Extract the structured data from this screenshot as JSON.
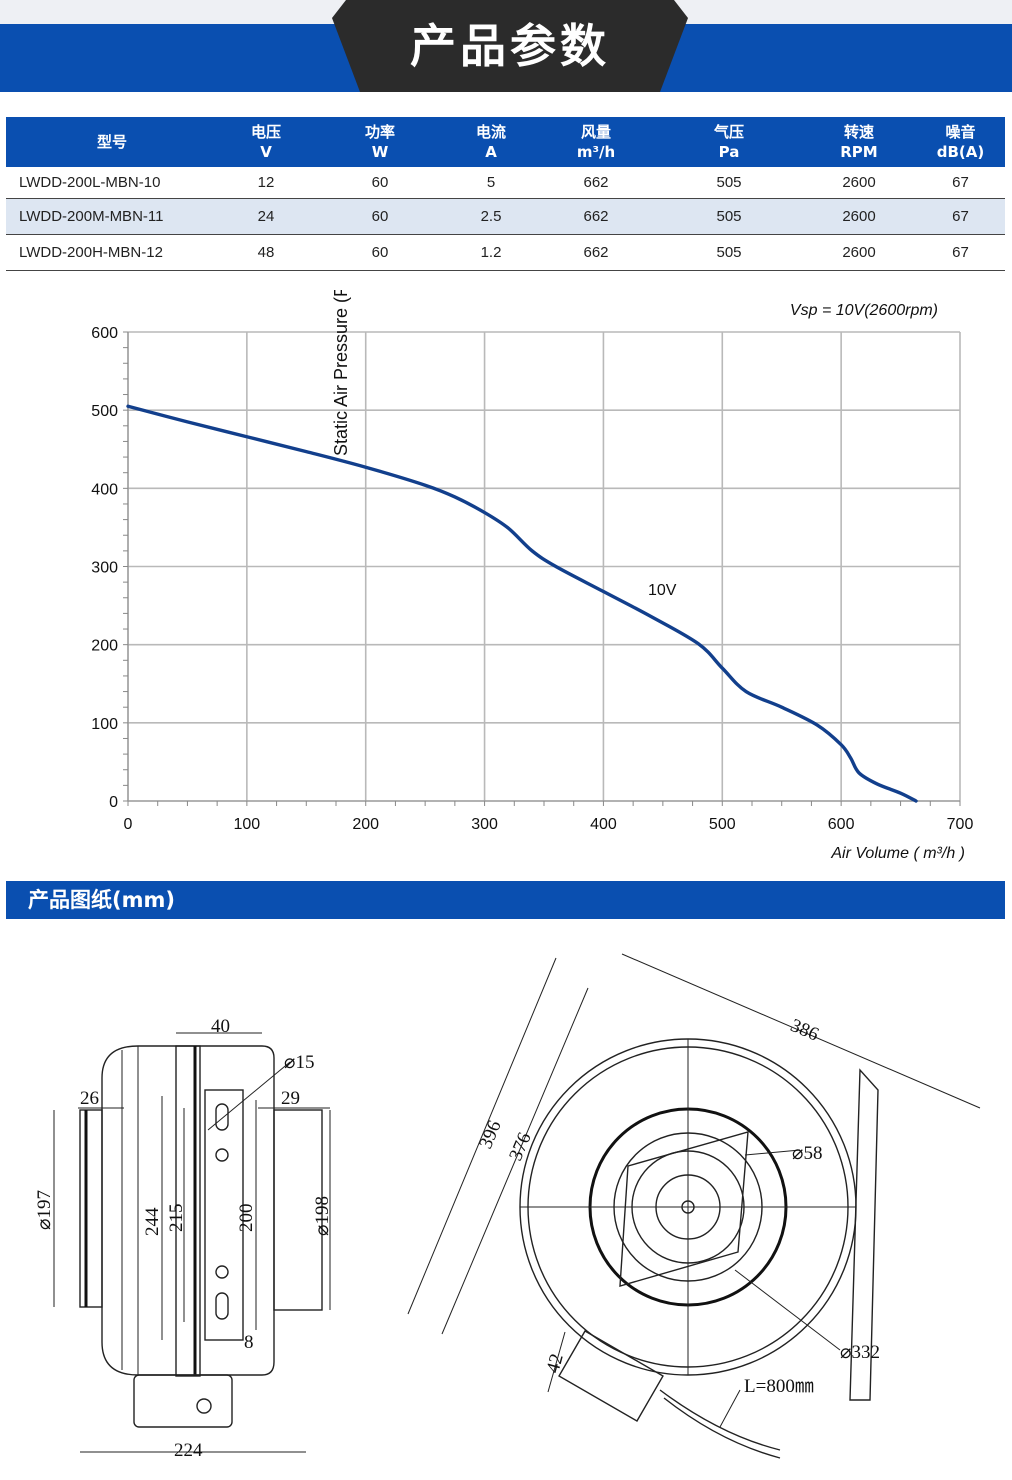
{
  "header": {
    "title": "产品参数",
    "band_color": "#0a4fb0",
    "tab_color": "#2b2b2b"
  },
  "spec_table": {
    "columns": [
      {
        "name": "型号",
        "unit": ""
      },
      {
        "name": "电压",
        "unit": "V"
      },
      {
        "name": "功率",
        "unit": "W"
      },
      {
        "name": "电流",
        "unit": "A"
      },
      {
        "name": "风量",
        "unit": "m³/h"
      },
      {
        "name": "气压",
        "unit": "Pa"
      },
      {
        "name": "转速",
        "unit": "RPM"
      },
      {
        "name": "噪音",
        "unit": "dB(A)"
      }
    ],
    "rows": [
      [
        "LWDD-200L-MBN-10",
        "12",
        "60",
        "5",
        "662",
        "505",
        "2600",
        "67"
      ],
      [
        "LWDD-200M-MBN-11",
        "24",
        "60",
        "2.5",
        "662",
        "505",
        "2600",
        "67"
      ],
      [
        "LWDD-200H-MBN-12",
        "48",
        "60",
        "1.2",
        "662",
        "505",
        "2600",
        "67"
      ]
    ]
  },
  "chart_data": {
    "type": "line",
    "title": "",
    "annotation": "Vsp = 10V(2600rpm)",
    "xlabel": "Air Volume ( m³/h )",
    "ylabel": "Static Air Pressure  (Pa)",
    "xlim": [
      0,
      700
    ],
    "ylim": [
      0,
      600
    ],
    "x_ticks": [
      "0",
      "100",
      "200",
      "300",
      "400",
      "500",
      "600",
      "700"
    ],
    "y_ticks": [
      "0",
      "100",
      "200",
      "300",
      "400",
      "500",
      "600"
    ],
    "grid": true,
    "series": [
      {
        "name": "10V",
        "color": "#123f8c",
        "x": [
          0,
          50,
          100,
          150,
          200,
          250,
          275,
          300,
          320,
          340,
          360,
          400,
          440,
          480,
          500,
          520,
          550,
          580,
          600,
          608,
          615,
          630,
          650,
          663
        ],
        "y": [
          505,
          485,
          466,
          447,
          427,
          404,
          389,
          369,
          349,
          320,
          300,
          268,
          236,
          201,
          170,
          140,
          120,
          97,
          72,
          55,
          36,
          22,
          10,
          0
        ]
      }
    ]
  },
  "drawing_section": {
    "title": "产品图纸(mm)",
    "side_view_dims": [
      "40",
      "26",
      "29",
      "⌀15",
      "⌀197",
      "244",
      "215",
      "200",
      "⌀198",
      "8",
      "224"
    ],
    "front_view_dims": [
      "386",
      "396",
      "376",
      "⌀58",
      "⌀332",
      "42",
      "L=800㎜"
    ]
  }
}
